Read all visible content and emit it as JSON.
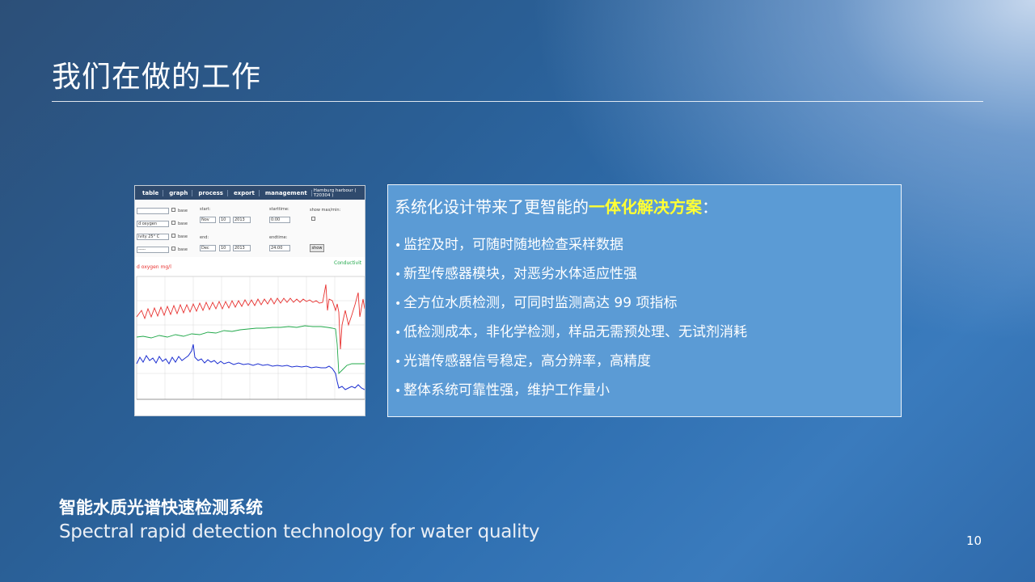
{
  "slide": {
    "title": "我们在做的工作",
    "page_number": "10"
  },
  "screenshot": {
    "tabs": [
      "table",
      "graph",
      "process",
      "export",
      "management"
    ],
    "station": "Hamburg harbour ( T20304 )",
    "params": [
      "",
      "d oxygen",
      "ivity 25° C",
      "-----"
    ],
    "base_label": "base",
    "start_label": "start:",
    "starttime_label": "starttime:",
    "end_label": "end:",
    "endtime_label": "endtime:",
    "show_label": "show max/min:",
    "start_month": "Nov",
    "start_day": "10",
    "start_year": "2013",
    "start_time": "0:00",
    "end_month": "Dec",
    "end_day": "10",
    "end_year": "2013",
    "end_time": "24:00",
    "show_button": "show",
    "plot_title": "d oxygen mg/l",
    "plot_right_title": "Conductivit",
    "colors": {
      "red": "#e8312f",
      "green": "#20a84a",
      "blue": "#1c2fd1"
    }
  },
  "info": {
    "headline_prefix": "系统化设计带来了更智能的",
    "headline_highlight": "一体化解决方案",
    "headline_suffix": "：",
    "highlight_color": "#ffff33",
    "bullets": [
      "监控及时，可随时随地检查采样数据",
      "新型传感器模块，对恶劣水体适应性强",
      "全方位水质检测，可同时监测高达 99 项指标",
      "低检测成本，非化学检测，样品无需预处理、无试剂消耗",
      "光谱传感器信号稳定，高分辨率，高精度",
      "整体系统可靠性强，维护工作量小"
    ]
  },
  "footer": {
    "system_cn": "智能水质光谱快速检测系统",
    "system_en": "Spectral rapid detection technology for water quality"
  }
}
